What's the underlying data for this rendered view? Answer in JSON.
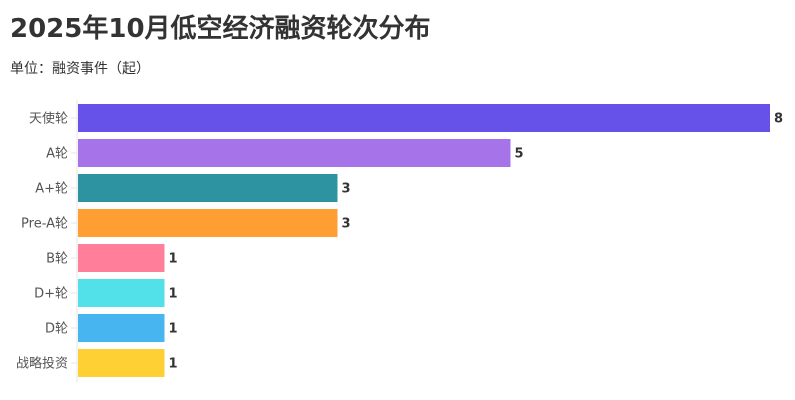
{
  "chart_data": {
    "type": "bar",
    "orientation": "horizontal",
    "title": "2025年10月低空经济融资轮次分布",
    "subtitle": "单位：融资事件（起）",
    "categories": [
      "天使轮",
      "A轮",
      "A+轮",
      "Pre-A轮",
      "B轮",
      "D+轮",
      "D轮",
      "战略投资"
    ],
    "values": [
      8,
      5,
      3,
      3,
      1,
      1,
      1,
      1
    ],
    "colors": [
      "#6652E8",
      "#A674E8",
      "#2E93A1",
      "#FF9F33",
      "#FF7F9B",
      "#52E1E8",
      "#47B6F0",
      "#FFD033"
    ],
    "xlim": [
      0,
      8
    ],
    "grid": false,
    "data_labels": true
  }
}
